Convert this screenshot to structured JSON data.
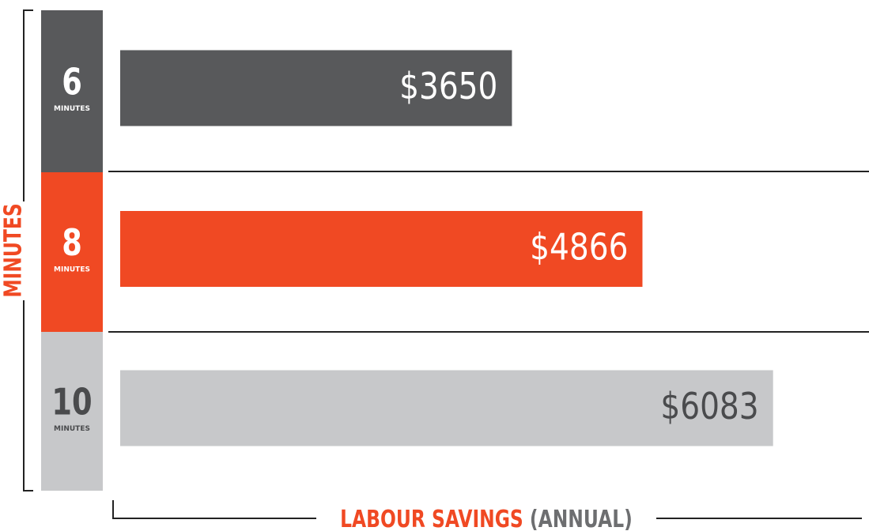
{
  "chart_data": {
    "type": "barh",
    "categories": [
      "6",
      "8",
      "10"
    ],
    "category_sublabels": [
      "MINUTES",
      "MINUTES",
      "MINUTES"
    ],
    "values": [
      3650,
      4866,
      6083
    ],
    "value_labels": [
      "$3650",
      "$4866",
      "$6083"
    ],
    "colors": [
      "#58595b",
      "#f04923",
      "#c7c8ca"
    ],
    "xlim": [
      0,
      6800
    ],
    "ylabel": "MINUTES",
    "xlabel": {
      "main": "LABOUR SAVINGS",
      "note": "(ANNUAL)"
    }
  }
}
